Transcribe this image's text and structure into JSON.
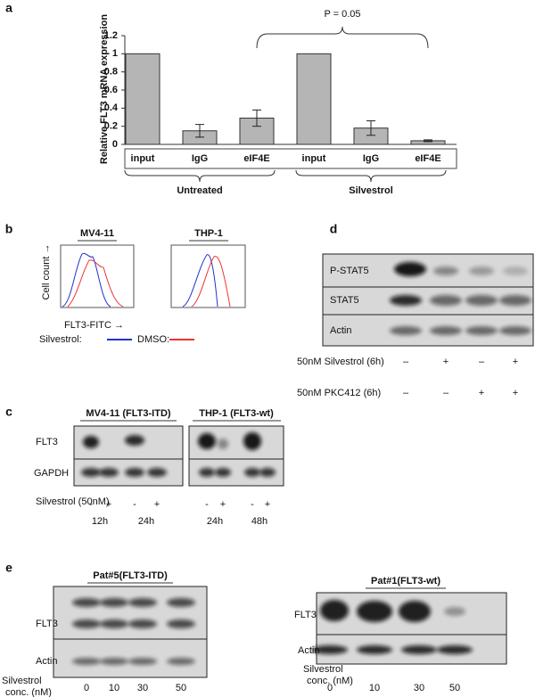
{
  "chart_data": {
    "type": "bar",
    "panel_label": "a",
    "annotation": "P = 0.05",
    "y_label": "Relative FLT3 mRNA expression",
    "categories": [
      "input",
      "IgG",
      "eIF4E",
      "input",
      "IgG",
      "eIF4E"
    ],
    "groups": [
      "Untreated",
      "Silvestrol"
    ],
    "values": [
      1,
      0.15,
      0.29,
      1,
      0.18,
      0.04
    ],
    "errors": [
      0,
      0.07,
      0.09,
      0,
      0.08,
      0.01
    ],
    "color": "#b5b5b5",
    "ylim": [
      0,
      1.2
    ],
    "yticks": [
      0,
      0.2,
      0.4,
      0.6,
      0.8,
      1,
      1.2
    ]
  },
  "panel_b": {
    "label": "b",
    "titles": [
      "MV4-11",
      "THP-1"
    ],
    "y_label": "Cell count →",
    "x_label": "FLT3-FITC →",
    "legend": [
      "Silvestrol:",
      "DMSO:"
    ]
  },
  "panel_c": {
    "label": "c",
    "titles": [
      "MV4-11 (FLT3-ITD)",
      "THP-1 (FLT3-wt)"
    ],
    "rows": [
      "FLT3",
      "GAPDH"
    ],
    "treatment": "Silvestrol (50nM)",
    "signs": [
      "-",
      "+",
      "-",
      "+",
      "-",
      "+",
      "-",
      "+"
    ],
    "times": [
      "12h",
      "24h",
      "24h",
      "48h"
    ]
  },
  "panel_d": {
    "label": "d",
    "rows": [
      "P-STAT5",
      "STAT5",
      "Actin"
    ],
    "conditions": [
      {
        "name": "50nM Silvestrol (6h)",
        "signs": [
          "–",
          "+",
          "–",
          "+"
        ]
      },
      {
        "name": "50nM PKC412 (6h)",
        "signs": [
          "–",
          "–",
          "+",
          "+"
        ]
      }
    ]
  },
  "panel_e": {
    "label": "e",
    "titles": [
      "Pat#5(FLT3-ITD)",
      "Pat#1(FLT3-wt)"
    ],
    "rows": [
      "FLT3",
      "Actin"
    ],
    "conc_label": [
      "Silvestrol",
      "conc. (nM)"
    ],
    "concentrations": [
      "0",
      "10",
      "30",
      "50"
    ]
  }
}
